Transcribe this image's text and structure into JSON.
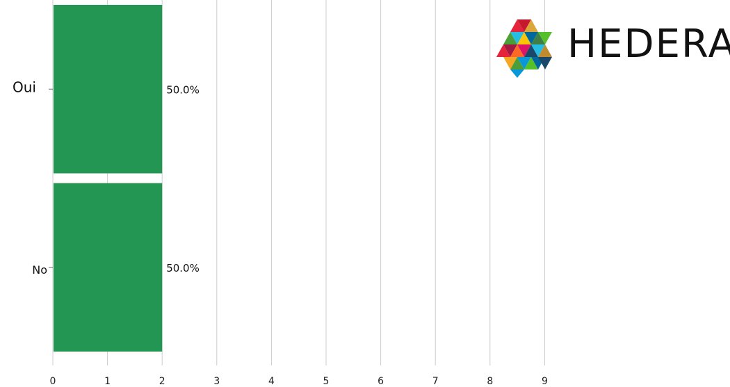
{
  "logo": {
    "text": "HEDERA"
  },
  "chart_data": {
    "type": "bar",
    "orientation": "horizontal",
    "categories": [
      "Oui",
      "No"
    ],
    "values": [
      2,
      2
    ],
    "data_labels": [
      "50.0%",
      "50.0%"
    ],
    "xlim": [
      0,
      9
    ],
    "xticks": [
      "0",
      "1",
      "2",
      "3",
      "4",
      "5",
      "6",
      "7",
      "8",
      "9"
    ],
    "grid": true,
    "bar_color": "#239654",
    "grid_color": "#cccccc"
  }
}
